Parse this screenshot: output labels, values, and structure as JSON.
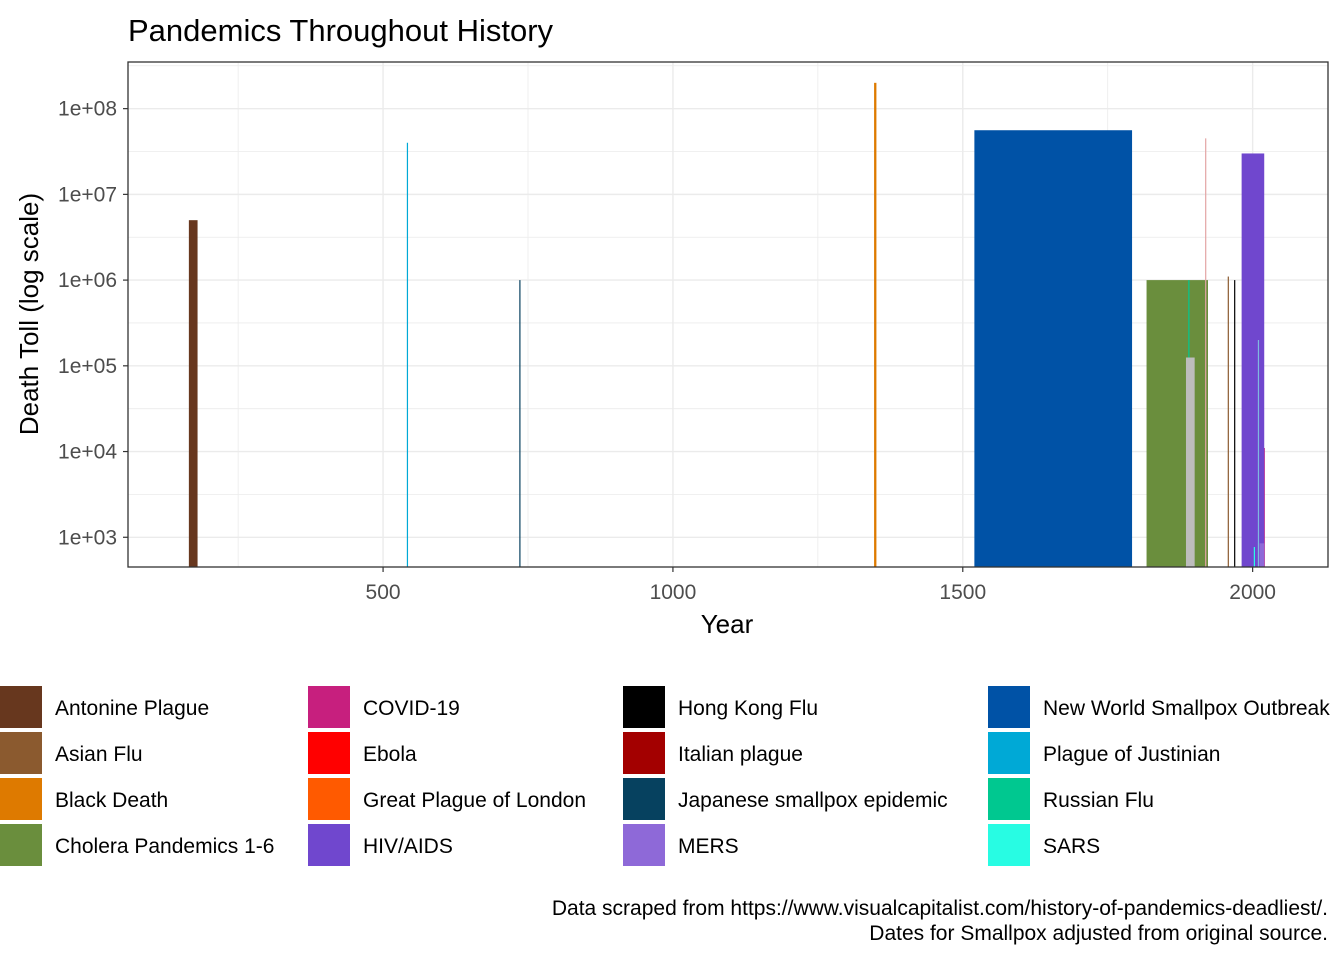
{
  "chart_data": {
    "type": "bar",
    "title": "Pandemics Throughout History",
    "xlabel": "Year",
    "ylabel": "Death Toll (log scale)",
    "x_scale": "linear",
    "y_scale": "log10",
    "xlim": [
      60,
      2130
    ],
    "ylim": [
      450,
      350000000
    ],
    "x_ticks": [
      500,
      1000,
      1500,
      2000
    ],
    "x_tick_labels": [
      "500",
      "1000",
      "1500",
      "2000"
    ],
    "y_ticks": [
      1000,
      10000,
      100000,
      1000000,
      10000000,
      100000000
    ],
    "y_tick_labels": [
      "1e+03",
      "1e+04",
      "1e+05",
      "1e+06",
      "1e+07",
      "1e+08"
    ],
    "grid": true,
    "legend_position": "bottom",
    "series": [
      {
        "name": "Antonine Plague",
        "color": "#67371E",
        "start": 165,
        "end": 180,
        "value": 5000000
      },
      {
        "name": "Asian Flu",
        "color": "#8B5A2F",
        "start": 1957,
        "end": 1958,
        "value": 1100000
      },
      {
        "name": "Black Death",
        "color": "#DE7A00",
        "start": 1347,
        "end": 1351,
        "value": 200000000
      },
      {
        "name": "Cholera Pandemics 1-6",
        "color": "#6A8E3D",
        "start": 1817,
        "end": 1923,
        "value": 1000000
      },
      {
        "name": "COVID-19",
        "color": "#C71F7E",
        "start": 2019,
        "end": 2021,
        "value": 11000
      },
      {
        "name": "Ebola",
        "color": "#FF0000",
        "start": 2014,
        "end": 2016,
        "value": 11000
      },
      {
        "name": "Great Plague of London",
        "color": "#FF5A00",
        "start": 1665,
        "end": 1666,
        "value": 100000
      },
      {
        "name": "HIV/AIDS",
        "color": "#7047CE",
        "start": 1981,
        "end": 2020,
        "value": 30000000
      },
      {
        "name": "Hong Kong Flu",
        "color": "#000000",
        "start": 1968,
        "end": 1970,
        "value": 1000000
      },
      {
        "name": "Italian plague",
        "color": "#A30000",
        "start": 1629,
        "end": 1631,
        "value": 1000000
      },
      {
        "name": "Japanese smallpox epidemic",
        "color": "#06415F",
        "start": 735,
        "end": 737,
        "value": 1000000
      },
      {
        "name": "MERS",
        "color": "#8E69D8",
        "start": 2012,
        "end": 2020,
        "value": 850
      },
      {
        "name": "New World Smallpox Outbreak",
        "color": "#0052A6",
        "start": 1520,
        "end": 1792,
        "value": 56000000
      },
      {
        "name": "Plague of Justinian",
        "color": "#00A9D6",
        "start": 541,
        "end": 542,
        "value": 40000000
      },
      {
        "name": "Russian Flu",
        "color": "#00C890",
        "start": 1889,
        "end": 1890,
        "value": 1000000
      },
      {
        "name": "SARS",
        "color": "#28FCE3",
        "start": 2002,
        "end": 2003,
        "value": 770
      },
      {
        "name": "",
        "color": "#BDBDBD",
        "start": 1885,
        "end": 1900,
        "value": 125000
      },
      {
        "name": "",
        "color": "#E3A4A4",
        "start": 1918,
        "end": 1919,
        "value": 45000000
      },
      {
        "name": "",
        "color": "#7FB9E0",
        "start": 2009,
        "end": 2010,
        "value": 200000
      }
    ]
  },
  "legend": {
    "items": [
      {
        "label": "Antonine Plague",
        "color": "#67371E"
      },
      {
        "label": "Asian Flu",
        "color": "#8B5A2F"
      },
      {
        "label": "Black Death",
        "color": "#DE7A00"
      },
      {
        "label": "Cholera Pandemics 1-6",
        "color": "#6A8E3D"
      },
      {
        "label": "COVID-19",
        "color": "#C71F7E"
      },
      {
        "label": "Ebola",
        "color": "#FF0000"
      },
      {
        "label": "Great Plague of London",
        "color": "#FF5A00"
      },
      {
        "label": "HIV/AIDS",
        "color": "#7047CE"
      },
      {
        "label": "Hong Kong Flu",
        "color": "#000000"
      },
      {
        "label": "Italian plague",
        "color": "#A30000"
      },
      {
        "label": "Japanese smallpox epidemic",
        "color": "#06415F"
      },
      {
        "label": "MERS",
        "color": "#8E69D8"
      },
      {
        "label": "New World Smallpox Outbreak",
        "color": "#0052A6"
      },
      {
        "label": "Plague of Justinian",
        "color": "#00A9D6"
      },
      {
        "label": "Russian Flu",
        "color": "#00C890"
      },
      {
        "label": "SARS",
        "color": "#28FCE3"
      }
    ]
  },
  "caption": {
    "line1": "Data scraped from https://www.visualcapitalist.com/history-of-pandemics-deadliest/.",
    "line2": "Dates for Smallpox adjusted from original source."
  }
}
